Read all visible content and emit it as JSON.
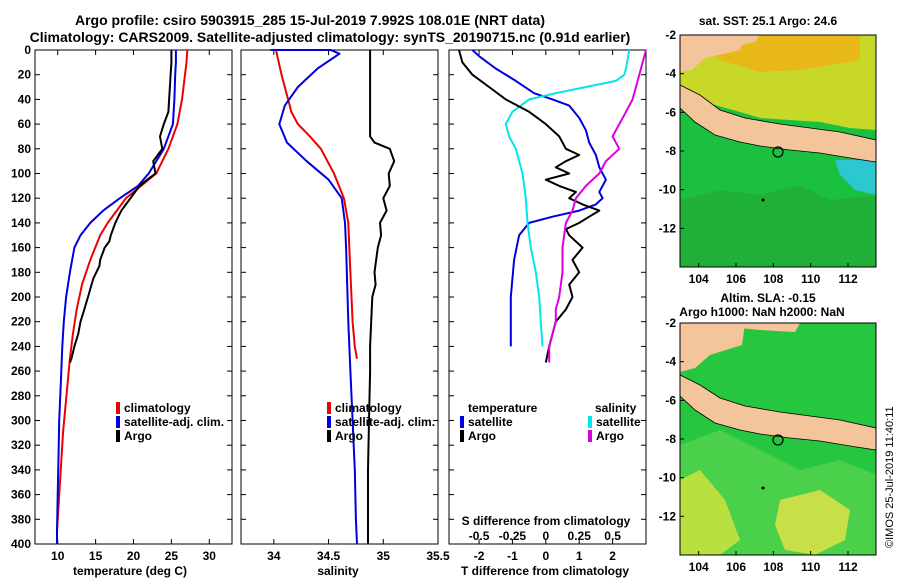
{
  "header": {
    "line1": "Argo profile: csiro 5903915_285 15-Jul-2019 7.992S 108.01E (NRT data)",
    "line2": "Climatology: CARS2009. Satellite-adjusted climatology: synTS_20190715.nc (0.91d earlier)"
  },
  "colors": {
    "climatology": "#ee0000",
    "satellite": "#0000dd",
    "argo": "#000000",
    "sat_salinity": "#00e5ee",
    "argo_salinity_diff": "#dd00dd",
    "land": "#f4c49a",
    "ocean_green": "#1cbf3c",
    "ocean_yellow": "#c8dc28"
  },
  "chart_data": [
    {
      "type": "line",
      "id": "temperature",
      "xlabel": "temperature (deg C)",
      "ylabel": "",
      "xlim": [
        7,
        33
      ],
      "ylim": [
        400,
        0
      ],
      "xticks": [
        "10",
        "15",
        "20",
        "25",
        "30"
      ],
      "xtick_values": [
        10,
        15,
        20,
        25,
        30
      ],
      "yticks": [
        "0",
        "20",
        "40",
        "60",
        "80",
        "100",
        "120",
        "140",
        "160",
        "180",
        "200",
        "220",
        "240",
        "260",
        "280",
        "300",
        "320",
        "340",
        "360",
        "380",
        "400"
      ],
      "ytick_values": [
        0,
        20,
        40,
        60,
        80,
        100,
        120,
        140,
        160,
        180,
        200,
        220,
        240,
        260,
        280,
        300,
        320,
        340,
        360,
        380,
        400
      ],
      "legend": [
        "climatology",
        "satellite-adj. clim.",
        "Argo"
      ],
      "legend_position": "middle-right",
      "series": [
        {
          "name": "climatology",
          "x": [
            27.1,
            27.0,
            26.8,
            26.4,
            25.8,
            24.6,
            23.0,
            21.0,
            19.0,
            17.8,
            16.6,
            15.6,
            14.3,
            13.2,
            12.5,
            12.0,
            11.6,
            11.3,
            11.0,
            10.7,
            10.5,
            10.3,
            10.2,
            10.1,
            10.0,
            9.9,
            9.9,
            9.9
          ],
          "y": [
            0,
            10,
            20,
            40,
            60,
            80,
            100,
            110,
            120,
            130,
            140,
            150,
            170,
            190,
            210,
            230,
            250,
            270,
            290,
            310,
            330,
            350,
            360,
            370,
            380,
            390,
            395,
            400
          ]
        },
        {
          "name": "satellite-adj. clim.",
          "x": [
            25.6,
            25.6,
            25.5,
            25.4,
            25.2,
            24.0,
            22.0,
            20.6,
            18.2,
            16.0,
            14.3,
            13.0,
            12.2,
            11.6,
            11.1,
            10.8,
            10.6,
            10.4,
            10.2,
            10.1,
            10.0,
            9.9,
            9.9
          ],
          "y": [
            0,
            10,
            20,
            40,
            60,
            80,
            100,
            110,
            120,
            130,
            140,
            150,
            160,
            180,
            200,
            220,
            240,
            270,
            300,
            330,
            360,
            390,
            400
          ]
        },
        {
          "name": "Argo",
          "x": [
            25.0,
            25.0,
            24.9,
            24.8,
            24.7,
            24.6,
            24.0,
            23.5,
            23.8,
            22.6,
            22.9,
            21.8,
            20.8,
            20.2,
            19.6,
            19.0,
            18.4,
            18.0,
            17.6,
            17.0,
            16.8,
            16.2,
            15.6,
            15.5,
            14.7,
            14.0,
            13.5,
            13.0,
            12.7,
            12.2,
            12.0,
            11.8,
            11.6
          ],
          "y": [
            0,
            10,
            20,
            30,
            40,
            50,
            60,
            70,
            80,
            90,
            100,
            105,
            110,
            115,
            120,
            125,
            130,
            135,
            140,
            150,
            155,
            160,
            170,
            175,
            185,
            200,
            210,
            220,
            230,
            240,
            245,
            250,
            253
          ]
        }
      ]
    },
    {
      "type": "line",
      "id": "salinity",
      "xlabel": "salinity",
      "xlim": [
        33.7,
        35.5
      ],
      "ylim": [
        400,
        0
      ],
      "xticks": [
        "34",
        "34.5",
        "35",
        "35.5"
      ],
      "xtick_values": [
        34,
        34.5,
        35,
        35.5
      ],
      "legend": [
        "climatology",
        "satellite-adj. clim.",
        "Argo"
      ],
      "legend_position": "middle-right",
      "series": [
        {
          "name": "climatology",
          "x": [
            34.02,
            34.07,
            34.13,
            34.16,
            34.22,
            34.33,
            34.43,
            34.55,
            34.64,
            34.68,
            34.69,
            34.7,
            34.71,
            34.72,
            34.73,
            34.74,
            34.76
          ],
          "y": [
            0,
            20,
            40,
            50,
            60,
            70,
            80,
            100,
            120,
            140,
            160,
            180,
            200,
            220,
            230,
            240,
            250
          ]
        },
        {
          "name": "satellite-adj. clim.",
          "x": [
            33.97,
            34.52,
            34.6,
            34.4,
            34.22,
            34.1,
            34.05,
            34.12,
            34.3,
            34.5,
            34.62,
            34.65,
            34.66,
            34.67,
            34.68,
            34.7,
            34.72,
            34.74,
            34.75,
            34.76
          ],
          "y": [
            0,
            0,
            3,
            15,
            30,
            45,
            60,
            75,
            90,
            105,
            120,
            140,
            160,
            190,
            220,
            260,
            300,
            340,
            380,
            400
          ]
        },
        {
          "name": "Argo",
          "x": [
            34.88,
            34.88,
            34.88,
            34.88,
            34.88,
            34.92,
            35.06,
            35.1,
            35.05,
            35.06,
            35.0,
            35.03,
            34.97,
            34.98,
            34.95,
            34.92,
            34.93,
            34.9,
            34.89,
            34.88,
            34.88,
            34.87,
            34.86,
            34.86,
            34.86
          ],
          "y": [
            0,
            20,
            40,
            60,
            70,
            75,
            80,
            90,
            100,
            110,
            120,
            130,
            140,
            150,
            160,
            180,
            190,
            200,
            220,
            240,
            260,
            300,
            340,
            380,
            400
          ]
        }
      ]
    },
    {
      "type": "line",
      "id": "difference",
      "xlabel": "T difference from climatology",
      "xlabel2": "S difference from climatology",
      "xlim": [
        -2.9,
        3.0
      ],
      "ylim": [
        400,
        0
      ],
      "xticks": [
        "-2",
        "-1",
        "0",
        "1",
        "2"
      ],
      "xtick_values": [
        -2,
        -1,
        0,
        1,
        2
      ],
      "xticks_s": [
        "-0.5",
        "-0.25",
        "0",
        "0.25",
        "0.5"
      ],
      "xtick_values_s": [
        -2,
        -1,
        0,
        1,
        2
      ],
      "legend_title_t": "temperature",
      "legend_title_s": "salinity",
      "legend": [
        "satellite",
        "Argo",
        "satellite",
        "Argo"
      ],
      "legend_position": "middle",
      "series": [
        {
          "name": "satellite (T)",
          "x": [
            -2.2,
            -2.0,
            -1.5,
            -0.9,
            -0.35,
            0.2,
            0.7,
            1.0,
            1.2,
            1.3,
            1.5,
            1.6,
            1.7,
            1.8,
            1.6,
            1.7,
            1.5,
            1.0,
            0.2,
            -0.5,
            -0.8,
            -0.95,
            -1.05,
            -1.05,
            -1.05
          ],
          "y": [
            0,
            5,
            15,
            25,
            35,
            40,
            45,
            55,
            65,
            75,
            85,
            95,
            100,
            105,
            115,
            120,
            125,
            130,
            135,
            140,
            150,
            170,
            200,
            220,
            240
          ]
        },
        {
          "name": "satellite (S)",
          "x": [
            2.5,
            2.4,
            2.35,
            2.1,
            1.2,
            0.3,
            -0.5,
            -1.0,
            -1.2,
            -1.1,
            -0.9,
            -0.7,
            -0.6,
            -0.55,
            -0.45,
            -0.3,
            -0.2,
            -0.15,
            -0.1
          ],
          "y": [
            0,
            15,
            20,
            25,
            30,
            35,
            40,
            50,
            60,
            70,
            80,
            100,
            120,
            140,
            160,
            180,
            200,
            220,
            240
          ]
        },
        {
          "name": "Argo (T)",
          "x": [
            -2.6,
            -2.5,
            -2.2,
            -1.7,
            -1.2,
            -0.5,
            0.0,
            0.4,
            0.6,
            1.0,
            0.6,
            0.3,
            0.7,
            0.0,
            0.4,
            0.9,
            0.7,
            1.1,
            1.6,
            1.3,
            1.0,
            0.6,
            0.7,
            1.1,
            0.8,
            1.0,
            0.7,
            0.8,
            0.6,
            0.3,
            0.2,
            0.1,
            0.0
          ],
          "y": [
            0,
            10,
            20,
            30,
            40,
            50,
            60,
            70,
            80,
            85,
            90,
            95,
            100,
            105,
            110,
            115,
            120,
            125,
            130,
            135,
            140,
            145,
            150,
            160,
            170,
            180,
            190,
            200,
            210,
            220,
            230,
            240,
            253
          ]
        },
        {
          "name": "Argo (S)",
          "x": [
            3.0,
            2.8,
            2.6,
            2.4,
            2.2,
            2.0,
            2.2,
            1.8,
            1.6,
            1.2,
            0.9,
            0.8,
            0.6,
            0.5,
            0.5,
            0.4,
            0.3,
            0.3,
            0.2,
            0.1,
            0.1
          ],
          "y": [
            0,
            20,
            40,
            50,
            60,
            70,
            80,
            90,
            100,
            110,
            120,
            130,
            140,
            160,
            180,
            200,
            210,
            220,
            230,
            240,
            253
          ]
        }
      ]
    }
  ],
  "maps": [
    {
      "title": "sat. SST: 25.1 Argo: 24.6",
      "xticks": [
        "104",
        "106",
        "108",
        "110",
        "112"
      ],
      "yticks": [
        "-4",
        "-6",
        "-8",
        "-10",
        "-12"
      ],
      "marker_lon": 108.01,
      "marker_lat": -7.992
    },
    {
      "title": "Altim. SLA: -0.15",
      "subtitle": "Argo h1000: NaN h2000: NaN",
      "xticks": [
        "104",
        "106",
        "108",
        "110",
        "112"
      ],
      "yticks": [
        "-4",
        "-6",
        "-8",
        "-10",
        "-12"
      ],
      "marker_lon": 108.01,
      "marker_lat": -7.992
    }
  ],
  "footer": {
    "stamp": "©IMOS 25-Jul-2019 11:40:11"
  }
}
